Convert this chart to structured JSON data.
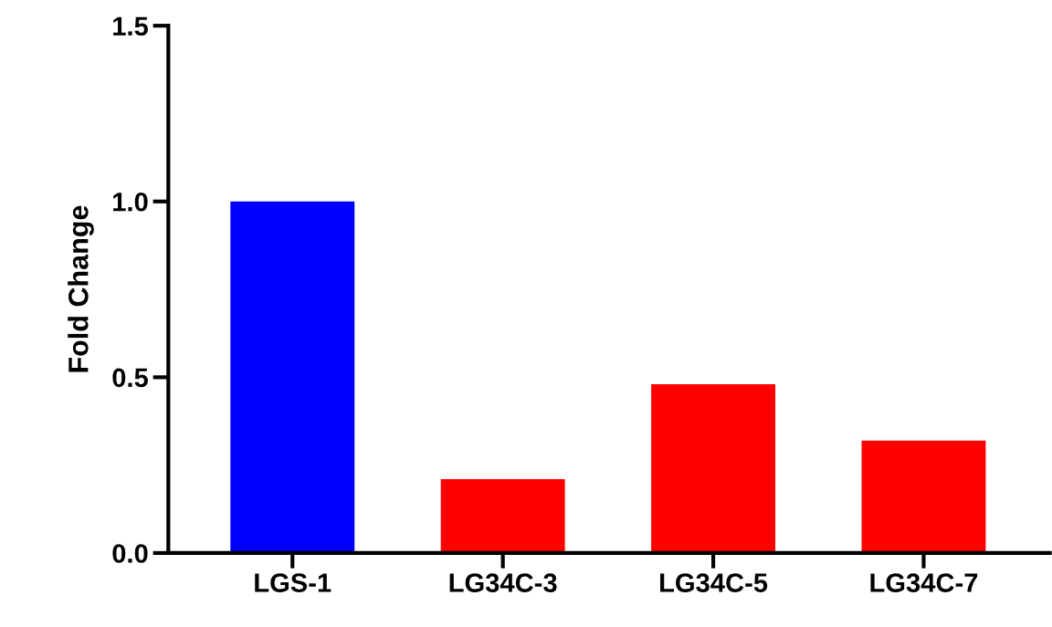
{
  "chart_data": {
    "type": "bar",
    "ylabel": "Fold Change",
    "categories": [
      "LGS-1",
      "LG34C-3",
      "LG34C-5",
      "LG34C-7"
    ],
    "values": [
      1.0,
      0.21,
      0.48,
      0.32
    ],
    "colors": [
      "#0000ff",
      "#ff0000",
      "#ff0000",
      "#ff0000"
    ],
    "ylim": [
      0,
      1.5
    ],
    "yticks": [
      {
        "value": 0,
        "label": "0.0"
      },
      {
        "value": 0.5,
        "label": "0.5"
      },
      {
        "value": 1,
        "label": "1.0"
      },
      {
        "value": 1.5,
        "label": "1.5"
      }
    ],
    "grid": false,
    "legend": false
  }
}
